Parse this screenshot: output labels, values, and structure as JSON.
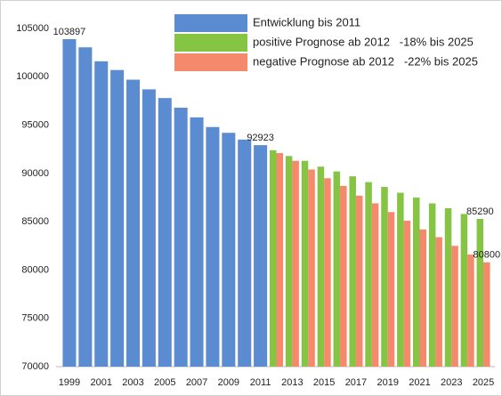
{
  "chart_data": {
    "type": "bar",
    "categories": [
      "1999",
      null,
      "2001",
      null,
      "2003",
      null,
      "2005",
      null,
      "2007",
      null,
      "2009",
      null,
      "2011",
      null,
      "2013",
      null,
      "2015",
      null,
      "2017",
      null,
      "2019",
      null,
      "2021",
      null,
      "2023",
      null,
      "2025"
    ],
    "series": [
      {
        "name": "Entwicklung bis 2011",
        "color": "#5b8bd0",
        "label_points": [
          0,
          12
        ],
        "values": [
          103897,
          103050,
          101600,
          100700,
          99700,
          98700,
          97800,
          96800,
          95800,
          94800,
          94200,
          93500,
          92923,
          null,
          null,
          null,
          null,
          null,
          null,
          null,
          null,
          null,
          null,
          null,
          null,
          null,
          null
        ]
      },
      {
        "name": "positive Prognose ab 2012   -18% bis 2025",
        "color": "#86c443",
        "label_points": [
          26
        ],
        "values": [
          null,
          null,
          null,
          null,
          null,
          null,
          null,
          null,
          null,
          null,
          null,
          null,
          null,
          92400,
          91800,
          91300,
          90700,
          90200,
          89700,
          89100,
          88600,
          88000,
          87500,
          86900,
          86400,
          85800,
          85290
        ]
      },
      {
        "name": "negative Prognose ab 2012   -22% bis 2025",
        "color": "#f4896b",
        "label_points": [
          26
        ],
        "values": [
          null,
          null,
          null,
          null,
          null,
          null,
          null,
          null,
          null,
          null,
          null,
          null,
          null,
          92100,
          91300,
          90400,
          89500,
          88700,
          87700,
          86900,
          86000,
          85100,
          84200,
          83400,
          82500,
          81600,
          80800
        ]
      }
    ],
    "ylim": [
      70000,
      105000
    ],
    "yticks": [
      70000,
      75000,
      80000,
      85000,
      90000,
      95000,
      100000,
      105000
    ],
    "legend": "top"
  }
}
